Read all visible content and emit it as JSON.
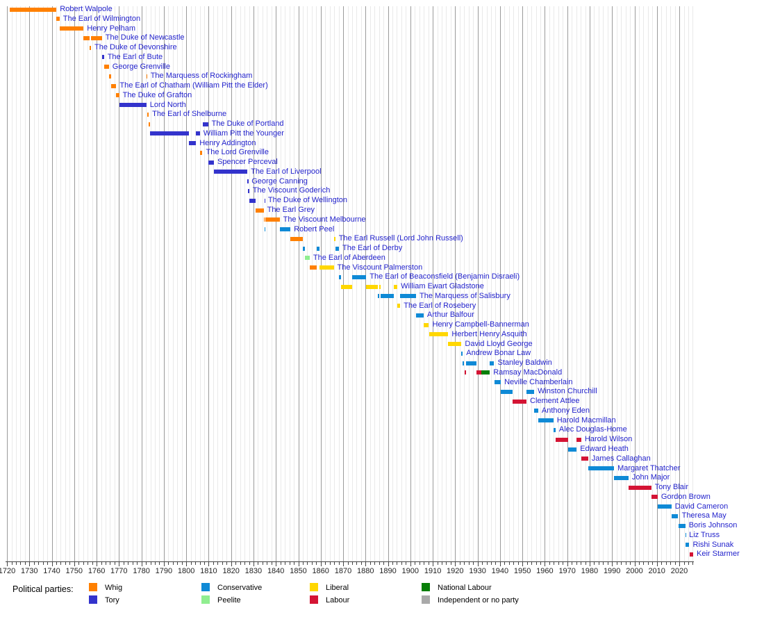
{
  "chart_data": {
    "type": "timeline",
    "description": "Gantt-style timeline of British Prime Ministers and their terms in office, colored by political party",
    "x_axis": {
      "start": 1720,
      "end": 2026.3,
      "major_tick_interval": 10,
      "minor_tick_interval": 2,
      "tick_labels": [
        1720,
        1730,
        1740,
        1750,
        1760,
        1770,
        1780,
        1790,
        1800,
        1810,
        1820,
        1830,
        1840,
        1850,
        1860,
        1870,
        1880,
        1890,
        1900,
        1910,
        1920,
        1930,
        1940,
        1950,
        1960,
        1970,
        1980,
        1990,
        2000,
        2010,
        2020
      ]
    },
    "parties": {
      "whig": {
        "label": "Whig",
        "color": "#ff8000"
      },
      "tory": {
        "label": "Tory",
        "color": "#3333cc"
      },
      "conservative": {
        "label": "Conservative",
        "color": "#0f8ad6"
      },
      "peelite": {
        "label": "Peelite",
        "color": "#90ee90"
      },
      "liberal": {
        "label": "Liberal",
        "color": "#ffd700"
      },
      "labour": {
        "label": "Labour",
        "color": "#d41434"
      },
      "national_labour": {
        "label": "National Labour",
        "color": "#087f08"
      },
      "independent": {
        "label": "Independent or no party",
        "color": "#a9a9a9"
      }
    },
    "legend": {
      "heading": "Political parties:",
      "columns": [
        [
          "whig",
          "tory"
        ],
        [
          "conservative",
          "peelite"
        ],
        [
          "liberal",
          "labour"
        ],
        [
          "national_labour",
          "independent"
        ]
      ]
    },
    "prime_ministers": [
      {
        "name": "Robert Walpole",
        "segments": [
          {
            "party": "whig",
            "start": 1721.25,
            "end": 1742.1
          }
        ]
      },
      {
        "name": "The Earl of Wilmington",
        "segments": [
          {
            "party": "whig",
            "start": 1742.1,
            "end": 1743.5
          }
        ]
      },
      {
        "name": "Henry Pelham",
        "segments": [
          {
            "party": "whig",
            "start": 1743.65,
            "end": 1754.17
          }
        ]
      },
      {
        "name": "The Duke of Newcastle",
        "segments": [
          {
            "party": "whig",
            "start": 1754.2,
            "end": 1756.87
          },
          {
            "party": "whig",
            "start": 1757.5,
            "end": 1762.4
          }
        ]
      },
      {
        "name": "The Duke of Devonshire",
        "segments": [
          {
            "party": "whig",
            "start": 1756.87,
            "end": 1757.5
          }
        ]
      },
      {
        "name": "The Earl of Bute",
        "segments": [
          {
            "party": "tory",
            "start": 1762.4,
            "end": 1763.28
          }
        ]
      },
      {
        "name": "George Grenville",
        "segments": [
          {
            "party": "whig",
            "start": 1763.28,
            "end": 1765.5
          }
        ]
      },
      {
        "name": "The Marquess of Rockingham",
        "segments": [
          {
            "party": "whig",
            "start": 1765.5,
            "end": 1766.58
          },
          {
            "party": "whig",
            "start": 1782.22,
            "end": 1782.5
          }
        ]
      },
      {
        "name": "The Earl of Chatham (William Pitt the Elder)",
        "segments": [
          {
            "party": "whig",
            "start": 1766.58,
            "end": 1768.78
          }
        ]
      },
      {
        "name": "The Duke of Grafton",
        "segments": [
          {
            "party": "whig",
            "start": 1768.78,
            "end": 1770.07
          }
        ]
      },
      {
        "name": "Lord North",
        "segments": [
          {
            "party": "tory",
            "start": 1770.07,
            "end": 1782.22
          }
        ]
      },
      {
        "name": "The Earl of Shelburne",
        "segments": [
          {
            "party": "whig",
            "start": 1782.5,
            "end": 1783.25
          }
        ]
      },
      {
        "name": "The Duke of Portland",
        "segments": [
          {
            "party": "whig",
            "start": 1783.25,
            "end": 1783.96
          },
          {
            "party": "tory",
            "start": 1807.25,
            "end": 1809.75
          }
        ]
      },
      {
        "name": "William Pitt the Younger",
        "segments": [
          {
            "party": "tory",
            "start": 1783.96,
            "end": 1801.2
          },
          {
            "party": "tory",
            "start": 1804.37,
            "end": 1806.07
          }
        ]
      },
      {
        "name": "Henry Addington",
        "segments": [
          {
            "party": "tory",
            "start": 1801.2,
            "end": 1804.37
          }
        ]
      },
      {
        "name": "The Lord Grenville",
        "segments": [
          {
            "party": "whig",
            "start": 1806.1,
            "end": 1807.25
          }
        ]
      },
      {
        "name": "Spencer Perceval",
        "segments": [
          {
            "party": "tory",
            "start": 1809.75,
            "end": 1812.36
          }
        ]
      },
      {
        "name": "The Earl of Liverpool",
        "segments": [
          {
            "party": "tory",
            "start": 1812.42,
            "end": 1827.27
          }
        ]
      },
      {
        "name": "George Canning",
        "segments": [
          {
            "party": "tory",
            "start": 1827.3,
            "end": 1827.6
          }
        ]
      },
      {
        "name": "The Viscount Goderich",
        "segments": [
          {
            "party": "tory",
            "start": 1827.66,
            "end": 1828.06
          }
        ]
      },
      {
        "name": "The Duke of Wellington",
        "segments": [
          {
            "party": "tory",
            "start": 1828.06,
            "end": 1830.88
          },
          {
            "party": "tory",
            "start": 1834.87,
            "end": 1834.95
          }
        ]
      },
      {
        "name": "The Earl Grey",
        "segments": [
          {
            "party": "whig",
            "start": 1830.88,
            "end": 1834.53
          }
        ]
      },
      {
        "name": "The Viscount Melbourne",
        "segments": [
          {
            "party": "whig",
            "start": 1834.53,
            "end": 1834.87
          },
          {
            "party": "whig",
            "start": 1835.3,
            "end": 1841.66
          }
        ]
      },
      {
        "name": "Robert Peel",
        "segments": [
          {
            "party": "conservative",
            "start": 1834.95,
            "end": 1835.3
          },
          {
            "party": "conservative",
            "start": 1841.66,
            "end": 1846.5
          }
        ]
      },
      {
        "name": "The Earl Russell (Lord John Russell)",
        "segments": [
          {
            "party": "whig",
            "start": 1846.5,
            "end": 1852.15
          },
          {
            "party": "liberal",
            "start": 1865.82,
            "end": 1866.5
          }
        ]
      },
      {
        "name": "The Earl of Derby",
        "segments": [
          {
            "party": "conservative",
            "start": 1852.15,
            "end": 1852.97
          },
          {
            "party": "conservative",
            "start": 1858.15,
            "end": 1859.45
          },
          {
            "party": "conservative",
            "start": 1866.5,
            "end": 1868.15
          }
        ]
      },
      {
        "name": "The Earl of Aberdeen",
        "segments": [
          {
            "party": "peelite",
            "start": 1852.97,
            "end": 1855.1
          }
        ]
      },
      {
        "name": "The Viscount Palmerston",
        "segments": [
          {
            "party": "whig",
            "start": 1855.1,
            "end": 1858.15
          },
          {
            "party": "liberal",
            "start": 1859.45,
            "end": 1865.82
          }
        ]
      },
      {
        "name": "The Earl of Beaconsfield (Benjamin Disraeli)",
        "segments": [
          {
            "party": "conservative",
            "start": 1868.15,
            "end": 1868.92
          },
          {
            "party": "conservative",
            "start": 1874.15,
            "end": 1880.32
          }
        ]
      },
      {
        "name": "William Ewart Gladstone",
        "segments": [
          {
            "party": "liberal",
            "start": 1868.92,
            "end": 1874.15
          },
          {
            "party": "liberal",
            "start": 1880.32,
            "end": 1885.45
          },
          {
            "party": "liberal",
            "start": 1886.1,
            "end": 1886.6
          },
          {
            "party": "liberal",
            "start": 1892.62,
            "end": 1894.2
          }
        ]
      },
      {
        "name": "The Marquess of Salisbury",
        "segments": [
          {
            "party": "conservative",
            "start": 1885.45,
            "end": 1886.1
          },
          {
            "party": "conservative",
            "start": 1886.6,
            "end": 1892.62
          },
          {
            "party": "conservative",
            "start": 1895.5,
            "end": 1902.54
          }
        ]
      },
      {
        "name": "The Earl of Rosebery",
        "segments": [
          {
            "party": "liberal",
            "start": 1894.2,
            "end": 1895.5
          }
        ]
      },
      {
        "name": "Arthur Balfour",
        "segments": [
          {
            "party": "conservative",
            "start": 1902.54,
            "end": 1905.92
          }
        ]
      },
      {
        "name": "Henry Campbell-Bannerman",
        "segments": [
          {
            "party": "liberal",
            "start": 1905.92,
            "end": 1908.27
          }
        ]
      },
      {
        "name": "Herbert Henry Asquith",
        "segments": [
          {
            "party": "liberal",
            "start": 1908.27,
            "end": 1916.92
          }
        ]
      },
      {
        "name": "David Lloyd George",
        "segments": [
          {
            "party": "liberal",
            "start": 1916.92,
            "end": 1922.8
          }
        ]
      },
      {
        "name": "Andrew Bonar Law",
        "segments": [
          {
            "party": "conservative",
            "start": 1922.8,
            "end": 1923.4
          }
        ]
      },
      {
        "name": "Stanley Baldwin",
        "segments": [
          {
            "party": "conservative",
            "start": 1923.4,
            "end": 1924.07
          },
          {
            "party": "conservative",
            "start": 1924.85,
            "end": 1929.42
          },
          {
            "party": "conservative",
            "start": 1935.45,
            "end": 1937.4
          }
        ]
      },
      {
        "name": "Ramsay MacDonald",
        "segments": [
          {
            "party": "labour",
            "start": 1924.07,
            "end": 1924.85
          },
          {
            "party": "labour",
            "start": 1929.42,
            "end": 1931.65
          },
          {
            "party": "national_labour",
            "start": 1931.65,
            "end": 1935.45
          }
        ]
      },
      {
        "name": "Neville Chamberlain",
        "segments": [
          {
            "party": "conservative",
            "start": 1937.4,
            "end": 1940.37
          }
        ]
      },
      {
        "name": "Winston Churchill",
        "segments": [
          {
            "party": "conservative",
            "start": 1940.37,
            "end": 1945.57
          },
          {
            "party": "conservative",
            "start": 1951.82,
            "end": 1955.27
          }
        ]
      },
      {
        "name": "Clement Attlee",
        "segments": [
          {
            "party": "labour",
            "start": 1945.57,
            "end": 1951.82
          }
        ]
      },
      {
        "name": "Anthony Eden",
        "segments": [
          {
            "party": "conservative",
            "start": 1955.27,
            "end": 1957.04
          }
        ]
      },
      {
        "name": "Harold Macmillan",
        "segments": [
          {
            "party": "conservative",
            "start": 1957.04,
            "end": 1963.8
          }
        ]
      },
      {
        "name": "Alec Douglas-Home",
        "segments": [
          {
            "party": "conservative",
            "start": 1963.8,
            "end": 1964.79
          }
        ]
      },
      {
        "name": "Harold Wilson",
        "segments": [
          {
            "party": "labour",
            "start": 1964.79,
            "end": 1970.46
          },
          {
            "party": "labour",
            "start": 1974.18,
            "end": 1976.27
          }
        ]
      },
      {
        "name": "Edward Heath",
        "segments": [
          {
            "party": "conservative",
            "start": 1970.46,
            "end": 1974.18
          }
        ]
      },
      {
        "name": "James Callaghan",
        "segments": [
          {
            "party": "labour",
            "start": 1976.27,
            "end": 1979.35
          }
        ]
      },
      {
        "name": "Margaret Thatcher",
        "segments": [
          {
            "party": "conservative",
            "start": 1979.35,
            "end": 1990.9
          }
        ]
      },
      {
        "name": "John Major",
        "segments": [
          {
            "party": "conservative",
            "start": 1990.9,
            "end": 1997.33
          }
        ]
      },
      {
        "name": "Tony Blair",
        "segments": [
          {
            "party": "labour",
            "start": 1997.33,
            "end": 2007.5
          }
        ]
      },
      {
        "name": "Gordon Brown",
        "segments": [
          {
            "party": "labour",
            "start": 2007.5,
            "end": 2010.36
          }
        ]
      },
      {
        "name": "David Cameron",
        "segments": [
          {
            "party": "conservative",
            "start": 2010.36,
            "end": 2016.54
          }
        ]
      },
      {
        "name": "Theresa May",
        "segments": [
          {
            "party": "conservative",
            "start": 2016.54,
            "end": 2019.56
          }
        ]
      },
      {
        "name": "Boris Johnson",
        "segments": [
          {
            "party": "conservative",
            "start": 2019.56,
            "end": 2022.68
          }
        ]
      },
      {
        "name": "Liz Truss",
        "segments": [
          {
            "party": "conservative",
            "start": 2022.68,
            "end": 2022.82
          }
        ]
      },
      {
        "name": "Rishi Sunak",
        "segments": [
          {
            "party": "conservative",
            "start": 2022.82,
            "end": 2024.5
          }
        ]
      },
      {
        "name": "Keir Starmer",
        "segments": [
          {
            "party": "labour",
            "start": 2024.5,
            "end": 2026.2
          }
        ]
      }
    ]
  },
  "colors": {
    "pm_label_text": "#2323cc",
    "gridline_minor": "#e9e9e9",
    "gridline_major": "#9a9a9a",
    "axis": "#444444",
    "tick_label_text": "#222222"
  }
}
